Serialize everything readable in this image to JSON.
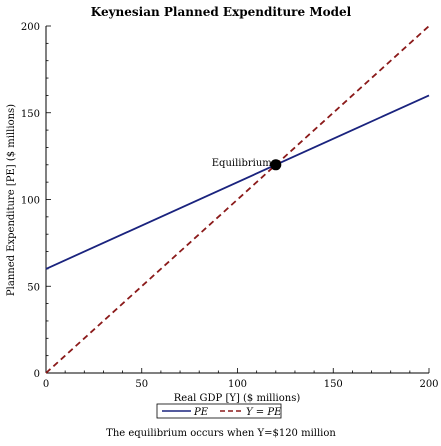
{
  "chart_data": {
    "type": "line",
    "title": "Keynesian Planned Expenditure Model",
    "xlabel": "Real GDP [Y] ($ millions)",
    "ylabel": "Planned Expenditure [PE] ($ millions)",
    "xlim": [
      0,
      200
    ],
    "ylim": [
      0,
      200
    ],
    "x_ticks": [
      0,
      50,
      100,
      150,
      200
    ],
    "y_ticks": [
      0,
      50,
      100,
      150,
      200
    ],
    "grid": false,
    "legend_position": "bottom-center",
    "series": [
      {
        "name": "PE",
        "x": [
          0,
          200
        ],
        "y": [
          60,
          160
        ],
        "color": "#1a237e",
        "style": "solid"
      },
      {
        "name": "Y = PE",
        "x": [
          0,
          200
        ],
        "y": [
          0,
          200
        ],
        "color": "#8b1a1a",
        "style": "dashed"
      }
    ],
    "annotations": [
      {
        "text": "Equilibrium",
        "x": 120,
        "y": 120
      }
    ],
    "equilibrium_point": {
      "x": 120,
      "y": 120,
      "color": "#000000"
    },
    "caption": "The equilibrium occurs when Y=$120 million"
  }
}
